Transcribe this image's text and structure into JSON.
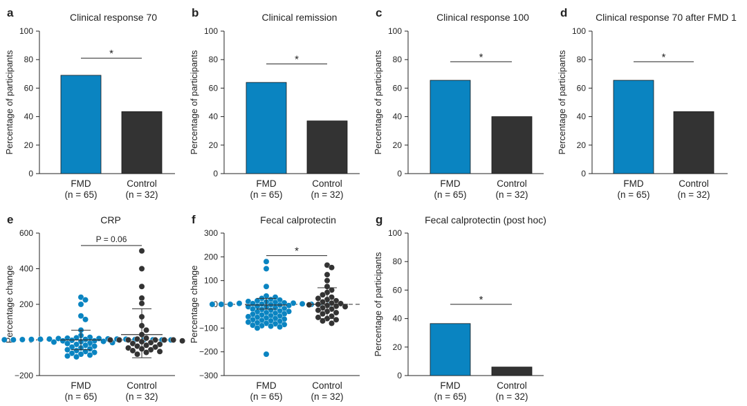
{
  "figure": {
    "colors": {
      "fmd": "#0a84c1",
      "control": "#333333",
      "axis": "#222222",
      "zero_line": "#555555"
    }
  },
  "chart_data": [
    {
      "id": "a",
      "panel_label": "a",
      "type": "bar",
      "title": "Clinical response 70",
      "ylabel": "Percentage of participants",
      "ylim": [
        0,
        100
      ],
      "yticks": [
        0,
        20,
        40,
        60,
        80,
        100
      ],
      "categories": [
        "FMD",
        "Control"
      ],
      "n_labels": [
        "(n = 65)",
        "(n = 32)"
      ],
      "values": [
        69,
        43.5
      ],
      "significance": {
        "text": "*",
        "level": 81
      }
    },
    {
      "id": "b",
      "panel_label": "b",
      "type": "bar",
      "title": "Clinical remission",
      "ylabel": "Percentage of participants",
      "ylim": [
        0,
        100
      ],
      "yticks": [
        0,
        20,
        40,
        60,
        80,
        100
      ],
      "categories": [
        "FMD",
        "Control"
      ],
      "n_labels": [
        "(n = 65)",
        "(n = 32)"
      ],
      "values": [
        64,
        37
      ],
      "significance": {
        "text": "*",
        "level": 77
      }
    },
    {
      "id": "c",
      "panel_label": "c",
      "type": "bar",
      "title": "Clinical response 100",
      "ylabel": "Percentage of participants",
      "ylim": [
        0,
        100
      ],
      "yticks": [
        0,
        20,
        40,
        60,
        80,
        100
      ],
      "categories": [
        "FMD",
        "Control"
      ],
      "n_labels": [
        "(n = 65)",
        "(n = 32)"
      ],
      "values": [
        65.5,
        40
      ],
      "significance": {
        "text": "*",
        "level": 78.5
      }
    },
    {
      "id": "d",
      "panel_label": "d",
      "type": "bar",
      "title": "Clinical response 70 after FMD 1",
      "ylabel": "Percentage of participants",
      "ylim": [
        0,
        100
      ],
      "yticks": [
        0,
        20,
        40,
        60,
        80,
        100
      ],
      "categories": [
        "FMD",
        "Control"
      ],
      "n_labels": [
        "(n = 65)",
        "(n = 32)"
      ],
      "values": [
        65.5,
        43.5
      ],
      "significance": {
        "text": "*",
        "level": 78.5
      }
    },
    {
      "id": "e",
      "panel_label": "e",
      "type": "scatter",
      "title": "CRP",
      "ylabel": "Percentage change",
      "ylim": [
        -200,
        600
      ],
      "yticks": [
        -200,
        0,
        200,
        400,
        600
      ],
      "categories": [
        "FMD",
        "Control"
      ],
      "n_labels": [
        "(n = 65)",
        "(n = 32)"
      ],
      "zero_line": true,
      "significance": {
        "text": "P = 0.06",
        "level": 530
      },
      "series": [
        {
          "name": "FMD",
          "median": 0,
          "upper": 55,
          "lower": -55,
          "values": [
            240,
            225,
            200,
            135,
            115,
            55,
            25,
            15,
            12,
            10,
            8,
            8,
            6,
            5,
            5,
            4,
            4,
            3,
            3,
            2,
            2,
            2,
            1,
            1,
            1,
            0,
            0,
            0,
            0,
            0,
            0,
            0,
            0,
            0,
            0,
            0,
            -1,
            -1,
            -2,
            -2,
            -3,
            -3,
            -5,
            -5,
            -8,
            -10,
            -12,
            -15,
            -18,
            -20,
            -25,
            -30,
            -35,
            -40,
            -45,
            -50,
            -55,
            -60,
            -65,
            -70,
            -75,
            -80,
            -85,
            -90,
            -95
          ]
        },
        {
          "name": "Control",
          "median": 30,
          "upper": 175,
          "lower": -100,
          "values": [
            500,
            400,
            300,
            235,
            205,
            130,
            80,
            55,
            30,
            10,
            5,
            0,
            0,
            0,
            0,
            0,
            0,
            -5,
            -10,
            -15,
            -20,
            -25,
            -30,
            -35,
            -40,
            -45,
            -50,
            -55,
            -60,
            -65,
            -70,
            -80
          ]
        }
      ]
    },
    {
      "id": "f",
      "panel_label": "f",
      "type": "scatter",
      "title": "Fecal calprotectin",
      "ylabel": "Percentage change",
      "ylim": [
        -300,
        300
      ],
      "yticks": [
        -300,
        -200,
        -100,
        0,
        100,
        200,
        300
      ],
      "categories": [
        "FMD",
        "Control"
      ],
      "n_labels": [
        "(n = 65)",
        "(n = 32)"
      ],
      "zero_line": true,
      "significance": {
        "text": "*",
        "level": 205
      },
      "series": [
        {
          "name": "FMD",
          "median": -3,
          "upper": 25,
          "lower": -20,
          "values": [
            180,
            150,
            75,
            35,
            30,
            25,
            20,
            18,
            15,
            12,
            10,
            8,
            6,
            5,
            4,
            3,
            2,
            1,
            0,
            0,
            0,
            0,
            0,
            0,
            -2,
            -3,
            -5,
            -8,
            -10,
            -12,
            -15,
            -18,
            -20,
            -22,
            -25,
            -28,
            -30,
            -32,
            -35,
            -38,
            -40,
            -42,
            -45,
            -48,
            -50,
            -52,
            -55,
            -58,
            -60,
            -62,
            -65,
            -68,
            -70,
            -72,
            -75,
            -78,
            -80,
            -82,
            -85,
            -88,
            -90,
            -92,
            -95,
            -100,
            -210
          ]
        },
        {
          "name": "Control",
          "median": 0,
          "upper": 70,
          "lower": -60,
          "values": [
            165,
            155,
            125,
            100,
            75,
            60,
            50,
            40,
            30,
            25,
            20,
            15,
            10,
            5,
            3,
            0,
            -2,
            -5,
            -8,
            -10,
            -15,
            -20,
            -25,
            -30,
            -35,
            -40,
            -50,
            -55,
            -60,
            -65,
            -70,
            -80
          ]
        }
      ]
    },
    {
      "id": "g",
      "panel_label": "g",
      "type": "bar",
      "title": "Fecal calprotectin (post hoc)",
      "ylabel": "Percentage of participants",
      "ylim": [
        0,
        100
      ],
      "yticks": [
        0,
        20,
        40,
        60,
        80,
        100
      ],
      "categories": [
        "FMD",
        "Control"
      ],
      "n_labels": [
        "(n = 65)",
        "(n = 32)"
      ],
      "values": [
        36.5,
        6
      ],
      "significance": {
        "text": "*",
        "level": 50
      }
    }
  ]
}
